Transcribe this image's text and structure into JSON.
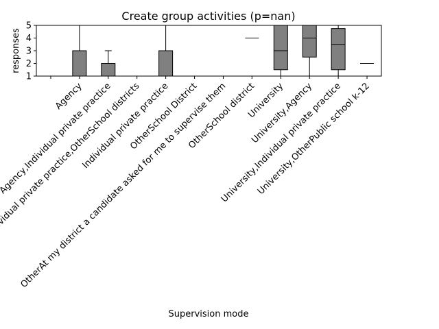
{
  "chart_data": {
    "type": "box",
    "title": "Create group activities (p=nan)",
    "xlabel": "Supervision mode",
    "ylabel": "responses",
    "ylim": [
      1,
      5
    ],
    "yticks": [
      1,
      2,
      3,
      4,
      5
    ],
    "box_color": "#808080",
    "categories": [
      "",
      "Agency",
      "Agency,Individual private practice",
      "Agency,Individual private practice,OtherSchool districts",
      "Individual private practice",
      "OtherSchool District",
      "OtherAt my district a candidate asked for me to supervise them",
      "OtherSchool district",
      "University",
      "University,Agency",
      "University,Individual private practice",
      "University,OtherPublic school k-12"
    ],
    "boxes": [
      {
        "whisker_low": 1,
        "q1": 1,
        "median": 1,
        "q3": 1,
        "whisker_high": 1
      },
      {
        "whisker_low": 1,
        "q1": 1,
        "median": 3,
        "q3": 3,
        "whisker_high": 5
      },
      {
        "whisker_low": 1,
        "q1": 1,
        "median": 2,
        "q3": 2,
        "whisker_high": 3
      },
      {
        "whisker_low": 1,
        "q1": 1,
        "median": 1,
        "q3": 1,
        "whisker_high": 1
      },
      {
        "whisker_low": 1,
        "q1": 1,
        "median": 3,
        "q3": 3,
        "whisker_high": 5
      },
      {
        "whisker_low": 1,
        "q1": 1,
        "median": 1,
        "q3": 1,
        "whisker_high": 1
      },
      {
        "whisker_low": 1,
        "q1": 1,
        "median": 1,
        "q3": 1,
        "whisker_high": 1
      },
      {
        "whisker_low": 4,
        "q1": 4,
        "median": 4,
        "q3": 4,
        "whisker_high": 4
      },
      {
        "whisker_low": 1,
        "q1": 1.5,
        "median": 3,
        "q3": 5,
        "whisker_high": 5
      },
      {
        "whisker_low": 1,
        "q1": 2.5,
        "median": 4,
        "q3": 5,
        "whisker_high": 5
      },
      {
        "whisker_low": 1,
        "q1": 1.5,
        "median": 3.5,
        "q3": 4.75,
        "whisker_high": 5
      },
      {
        "whisker_low": 2,
        "q1": 2,
        "median": 2,
        "q3": 2,
        "whisker_high": 2
      }
    ]
  }
}
